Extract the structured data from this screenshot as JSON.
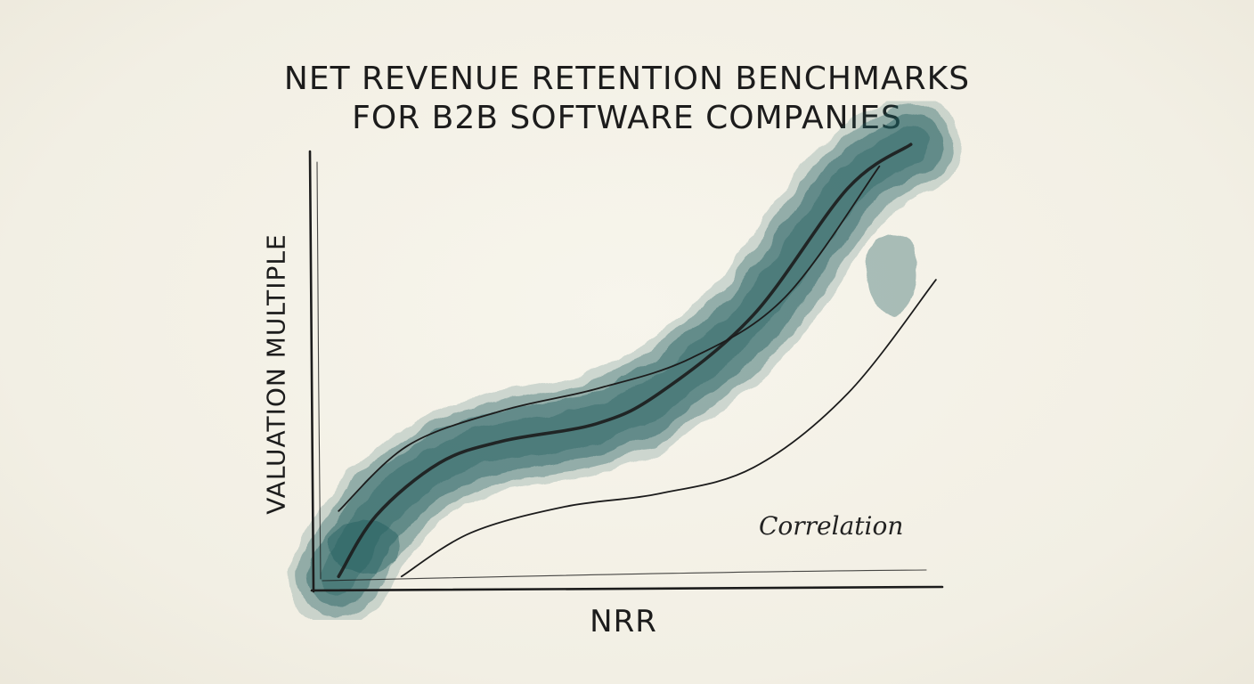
{
  "title_line1": "NET REVENUE RETENTION BENCHMARKS",
  "title_line2": "FOR B2B SOFTWARE COMPANIES",
  "chart_data": {
    "type": "line",
    "title": "NET REVENUE RETENTION BENCHMARKS FOR B2B SOFTWARE COMPANIES",
    "xlabel": "NRR",
    "ylabel": "VALUATION MULTIPLE",
    "annotation": "Correlation",
    "grid": false,
    "legend": "none",
    "xlim": [
      0,
      1
    ],
    "ylim": [
      0,
      1
    ],
    "series": [
      {
        "role": "trend",
        "x": [
          0.04,
          0.1,
          0.2,
          0.3,
          0.45,
          0.55,
          0.7,
          0.85,
          0.95
        ],
        "values": [
          0.03,
          0.17,
          0.29,
          0.34,
          0.38,
          0.45,
          0.63,
          0.92,
          1.02
        ]
      },
      {
        "role": "upper-bound",
        "x": [
          0.04,
          0.15,
          0.3,
          0.45,
          0.6,
          0.75,
          0.9
        ],
        "values": [
          0.18,
          0.33,
          0.41,
          0.46,
          0.53,
          0.67,
          0.97
        ]
      },
      {
        "role": "lower-bound",
        "x": [
          0.14,
          0.25,
          0.4,
          0.55,
          0.7,
          0.85,
          0.99
        ],
        "values": [
          0.03,
          0.13,
          0.19,
          0.22,
          0.28,
          0.45,
          0.71
        ]
      }
    ],
    "colors": {
      "band": "#1f5a5c",
      "ink": "#1c1c1c"
    }
  }
}
